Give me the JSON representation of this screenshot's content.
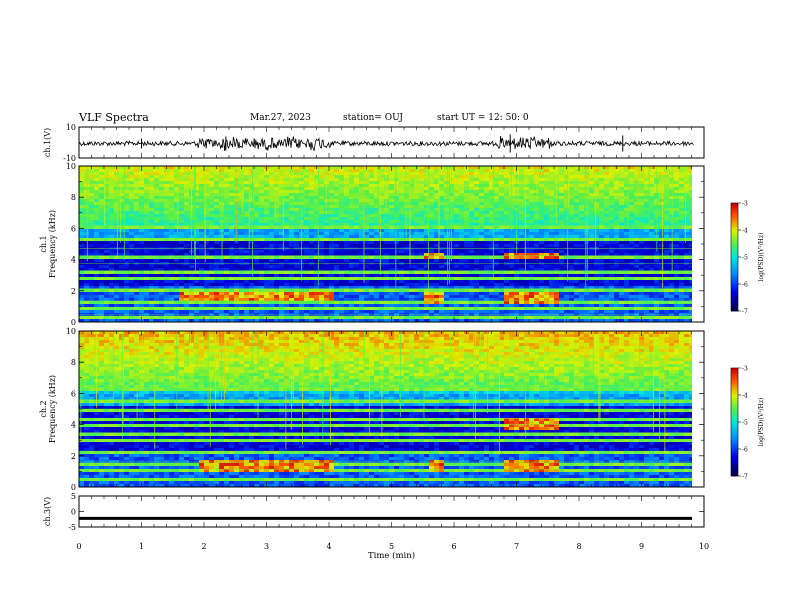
{
  "header": {
    "title": "VLF Spectra",
    "date": "Mar.27, 2023",
    "station": "station= OUJ",
    "start": "start  UT =   12: 50: 0"
  },
  "chart_data": [
    {
      "type": "line",
      "ylabel": "ch.1(V)",
      "ylim": [
        -10,
        10
      ],
      "y_ticks": [
        "10",
        "-10"
      ],
      "xlim": [
        0,
        10
      ],
      "description_level": "waveform amplitude around 0 V with bursts near 1.9–4.0 min and 6.7–7.6 min"
    },
    {
      "type": "heatmap",
      "ylabel": "ch.1\nFrequency (kHz)",
      "ylim": [
        0,
        10
      ],
      "y_ticks": [
        "0",
        "2",
        "4",
        "6",
        "8",
        "10"
      ],
      "xlim": [
        0,
        10
      ],
      "colorbar": {
        "ticks": [
          "-3",
          "-4",
          "-5",
          "-6",
          "-7"
        ],
        "label": "log(PSD)(V²/Hz)",
        "range": [
          -7,
          -3
        ]
      },
      "enhancements": [
        {
          "t_start": 1.6,
          "t_end": 4.05,
          "f_low": 1.4,
          "f_high": 2.0
        },
        {
          "t_start": 5.45,
          "t_end": 5.8,
          "f_low": 1.3,
          "f_high": 2.0
        },
        {
          "t_start": 5.45,
          "t_end": 5.8,
          "f_low": 4.1,
          "f_high": 4.6
        },
        {
          "t_start": 6.75,
          "t_end": 7.6,
          "f_low": 1.2,
          "f_high": 2.0
        },
        {
          "t_start": 6.75,
          "t_end": 7.6,
          "f_low": 4.1,
          "f_high": 4.6
        }
      ]
    },
    {
      "type": "heatmap",
      "ylabel": "ch.2\nFrequency (kHz)",
      "ylim": [
        0,
        10
      ],
      "y_ticks": [
        "0",
        "2",
        "4",
        "6",
        "8",
        "10"
      ],
      "xlim": [
        0,
        10
      ],
      "colorbar": {
        "ticks": [
          "-3",
          "-4",
          "-5",
          "-6",
          "-7"
        ],
        "label": "log(PSD)(V²/Hz)",
        "range": [
          -7,
          -3
        ]
      },
      "enhancements": [
        {
          "t_start": 1.9,
          "t_end": 4.05,
          "f_low": 1.0,
          "f_high": 1.8
        },
        {
          "t_start": 5.55,
          "t_end": 5.8,
          "f_low": 1.0,
          "f_high": 1.8
        },
        {
          "t_start": 6.75,
          "t_end": 7.6,
          "f_low": 1.0,
          "f_high": 1.8
        },
        {
          "t_start": 6.75,
          "t_end": 7.6,
          "f_low": 3.8,
          "f_high": 4.5
        }
      ]
    },
    {
      "type": "line",
      "ylabel": "ch.3(V)",
      "ylim": [
        -5,
        5
      ],
      "y_ticks": [
        "5",
        "0",
        "-5"
      ],
      "xlim": [
        0,
        10
      ],
      "level": -2.2
    }
  ],
  "xaxis": {
    "label": "Time (min)",
    "ticks": [
      "0",
      "1",
      "2",
      "3",
      "4",
      "5",
      "6",
      "7",
      "8",
      "9",
      "10"
    ]
  }
}
